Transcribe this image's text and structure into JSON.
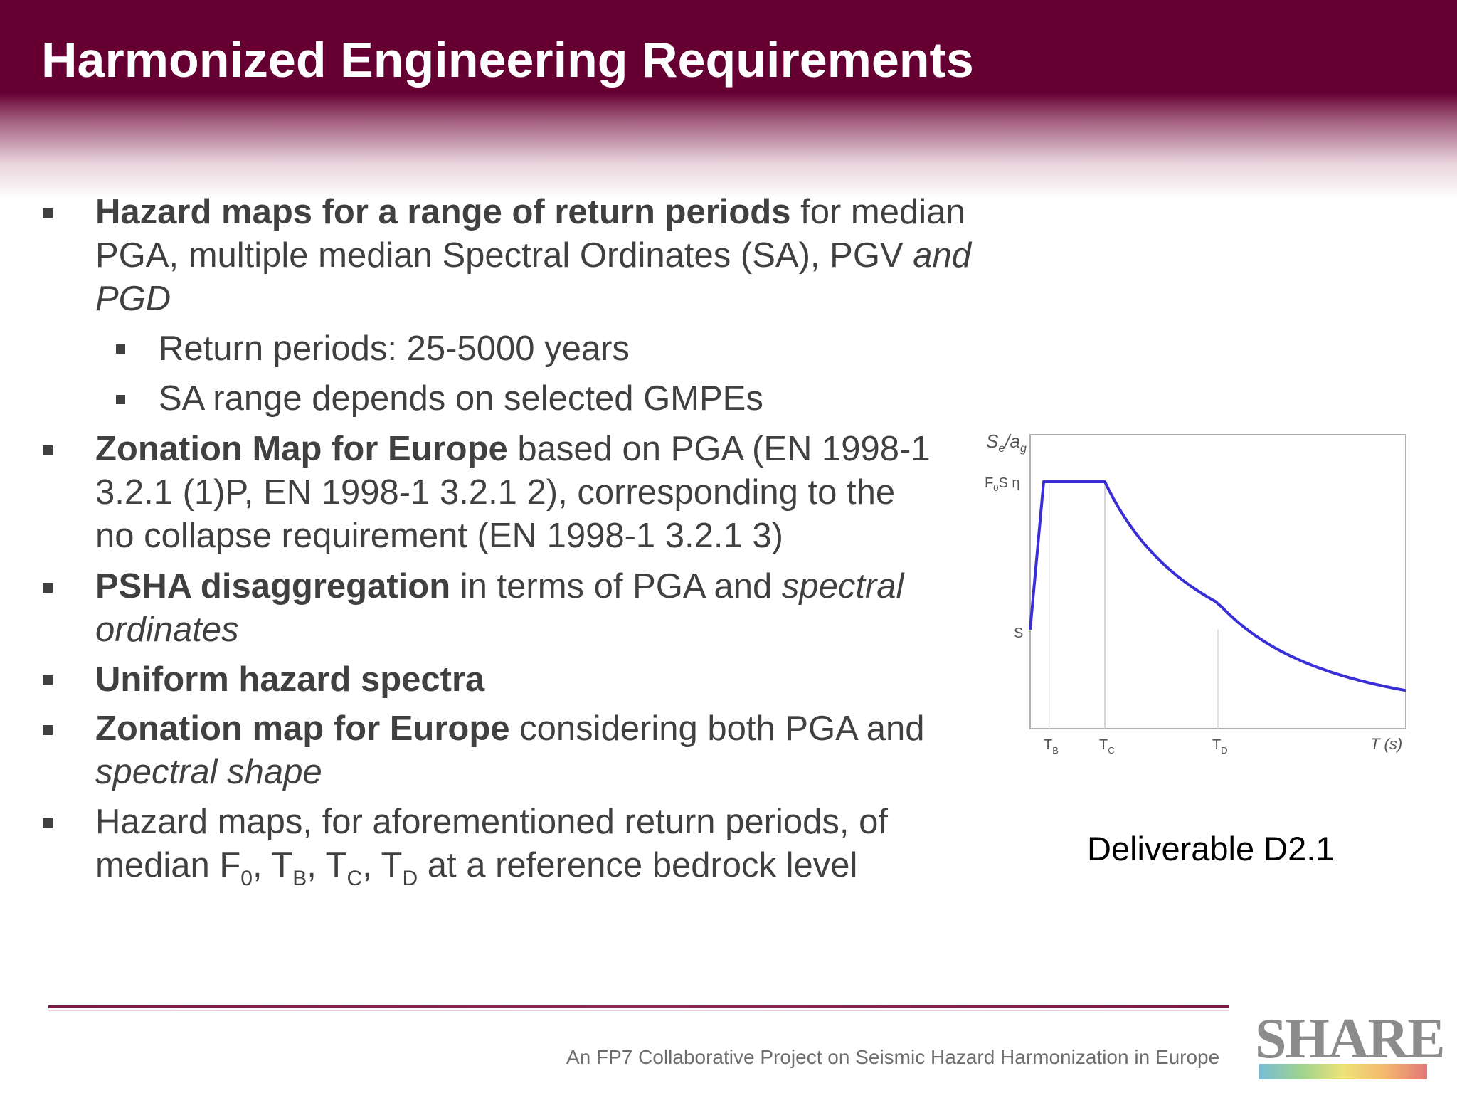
{
  "slide": {
    "title": "Harmonized Engineering Requirements"
  },
  "bullets": [
    {
      "level": 1,
      "bold": "Hazard maps for a range of return periods",
      "rest_line1": " for median",
      "line2_pre": "PGA, multiple median Spectral Ordinates (SA), PGV ",
      "line2_italic": "and",
      "line3_italic": "PGD"
    },
    {
      "level": 2,
      "text": "Return periods: 25-5000 years"
    },
    {
      "level": 2,
      "text": "SA range depends on selected GMPEs"
    },
    {
      "level": 1,
      "bold": "Zonation Map for Europe",
      "rest_line1": " based on PGA (EN 1998-1",
      "line2": "3.2.1 (1)P, EN 1998-1 3.2.1 2), corresponding to the",
      "line3": "no collapse requirement (EN 1998-1 3.2.1 3)"
    },
    {
      "level": 1,
      "bold": "PSHA disaggregation",
      "rest_line1": " in terms of PGA and ",
      "line1_italic": "spectral",
      "line2_italic": "ordinates"
    },
    {
      "level": 1,
      "bold": "Uniform hazard spectra"
    },
    {
      "level": 1,
      "bold": "Zonation map for Europe",
      "rest_line1": " considering both PGA and",
      "line2_italic": "spectral shape"
    },
    {
      "level": 1,
      "line1": "Hazard maps, for aforementioned return periods, of",
      "line2_pre": "median F",
      "sub0": "0",
      "sep1": ", T",
      "subB": "B",
      "sep2": ", T",
      "subC": "C",
      "sep3": ", T",
      "subD": "D",
      "line2_post": " at a reference bedrock level"
    }
  ],
  "chart_data": {
    "type": "line",
    "ylabel": "Se/ag",
    "xlabel": "T (s)",
    "y_tick_labels": [
      "F0S η",
      "S"
    ],
    "x_tick_labels": [
      "TB",
      "TC",
      "TD"
    ],
    "series": [
      {
        "values_description_points": [
          [
            0,
            0.42
          ],
          [
            0.2,
            1.0
          ],
          [
            0.6,
            1.0
          ],
          [
            1.0,
            0.72
          ],
          [
            2.0,
            0.42
          ],
          [
            3.0,
            0.3
          ],
          [
            4.0,
            0.14
          ]
        ]
      }
    ],
    "grid": false
  },
  "chart_labels": {
    "y_axis": "S",
    "y_axis_sub1": "e",
    "y_axis_mid": "/a",
    "y_axis_sub2": "g",
    "f0_pre": "F",
    "f0_sub": "0",
    "f0_post": "S η",
    "s_tick": "S",
    "tb": "T",
    "tb_sub": "B",
    "tc": "T",
    "tc_sub": "C",
    "td": "T",
    "td_sub": "D",
    "t_axis": "T (s)"
  },
  "deliverable": "Deliverable D2.1",
  "footer": {
    "text": "An FP7 Collaborative Project on Seismic Hazard Harmonization in Europe",
    "logo": "SHARE"
  },
  "colors": {
    "header": "#660033",
    "curve": "#3a2fd6"
  }
}
